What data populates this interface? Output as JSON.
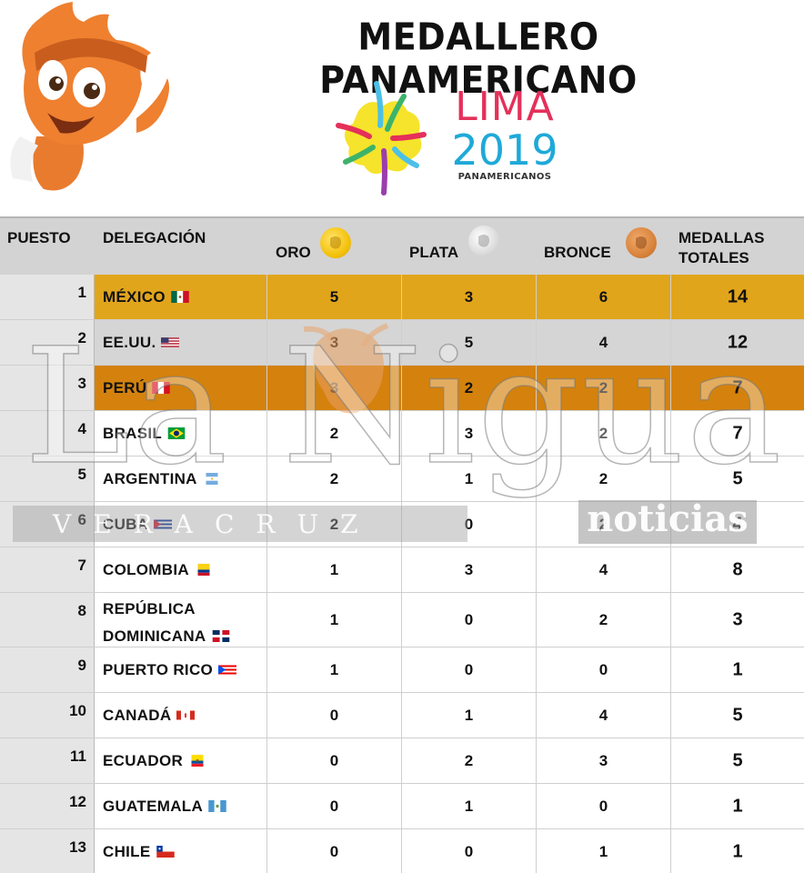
{
  "title": "MEDALLERO PANAMERICANO",
  "logo": {
    "word": "LIMA",
    "year": "2019",
    "sub": "PANAMERICANOS"
  },
  "columns": {
    "puesto": "PUESTO",
    "delegacion": "DELEGACIÓN",
    "oro": "ORO",
    "plata": "PLATA",
    "bronce": "BRONCE",
    "totales_1": "MEDALLAS",
    "totales_2": "TOTALES"
  },
  "rows": [
    {
      "puesto": "1",
      "delegacion": "MÉXICO",
      "flag": "mexico-flag-icon",
      "oro": "5",
      "plata": "3",
      "bronce": "6",
      "total": "14"
    },
    {
      "puesto": "2",
      "delegacion": "EE.UU.",
      "flag": "usa-flag-icon",
      "oro": "3",
      "plata": "5",
      "bronce": "4",
      "total": "12"
    },
    {
      "puesto": "3",
      "delegacion": "PERÚ",
      "flag": "peru-flag-icon",
      "oro": "3",
      "plata": "2",
      "bronce": "2",
      "total": "7"
    },
    {
      "puesto": "4",
      "delegacion": "BRASIL",
      "flag": "brazil-flag-icon",
      "oro": "2",
      "plata": "3",
      "bronce": "2",
      "total": "7"
    },
    {
      "puesto": "5",
      "delegacion": "ARGENTINA",
      "flag": "argentina-flag-icon",
      "oro": "2",
      "plata": "1",
      "bronce": "2",
      "total": "5"
    },
    {
      "puesto": "6",
      "delegacion": "CUBA",
      "flag": "cuba-flag-icon",
      "oro": "2",
      "plata": "0",
      "bronce": "2",
      "total": "4"
    },
    {
      "puesto": "7",
      "delegacion": "COLOMBIA",
      "flag": "colombia-flag-icon",
      "oro": "1",
      "plata": "3",
      "bronce": "4",
      "total": "8"
    },
    {
      "puesto": "8",
      "delegacion_1": "REPÚBLICA",
      "delegacion_2": "DOMINICANA",
      "flag": "dominican-republic-flag-icon",
      "oro": "1",
      "plata": "0",
      "bronce": "2",
      "total": "3"
    },
    {
      "puesto": "9",
      "delegacion": "PUERTO RICO",
      "flag": "puerto-rico-flag-icon",
      "oro": "1",
      "plata": "0",
      "bronce": "0",
      "total": "1"
    },
    {
      "puesto": "10",
      "delegacion": "CANADÁ",
      "flag": "canada-flag-icon",
      "oro": "0",
      "plata": "1",
      "bronce": "4",
      "total": "5"
    },
    {
      "puesto": "11",
      "delegacion": "ECUADOR",
      "flag": "ecuador-flag-icon",
      "oro": "0",
      "plata": "2",
      "bronce": "3",
      "total": "5"
    },
    {
      "puesto": "12",
      "delegacion": "GUATEMALA",
      "flag": "guatemala-flag-icon",
      "oro": "0",
      "plata": "1",
      "bronce": "0",
      "total": "1"
    },
    {
      "puesto": "13",
      "delegacion": "CHILE",
      "flag": "chile-flag-icon",
      "oro": "0",
      "plata": "0",
      "bronce": "1",
      "total": "1"
    }
  ],
  "highlight_colors": {
    "gold": "#e1a51c",
    "silver": "#d5d5d5",
    "bronze": "#d4820d"
  },
  "watermark": {
    "brand": "La Nigua",
    "sub": "VERACRUZ",
    "noticias": "noticias"
  }
}
